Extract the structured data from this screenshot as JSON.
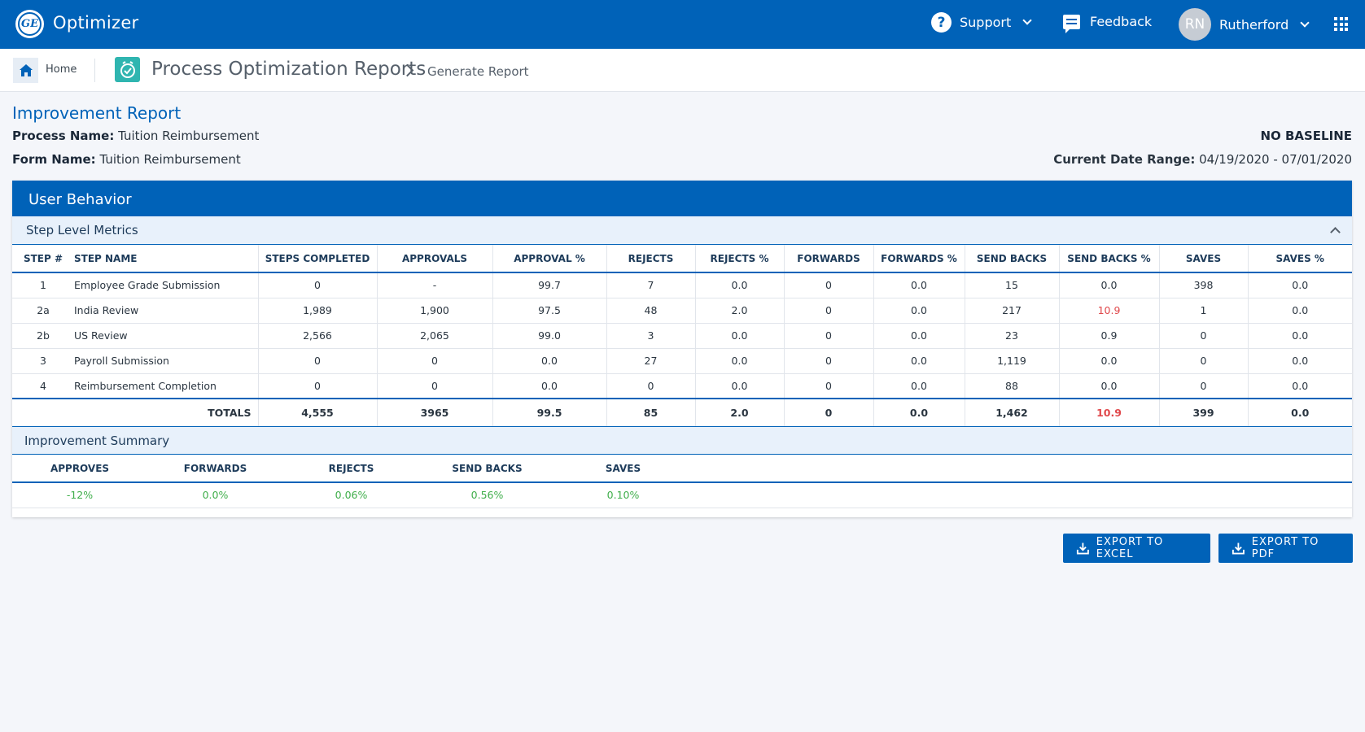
{
  "header": {
    "logo_text": "GE",
    "app_title": "Optimizer",
    "support_label": "Support",
    "feedback_label": "Feedback",
    "user_initials": "RN",
    "user_name": "Rutherford"
  },
  "breadcrumb": {
    "home_label": "Home",
    "app_name": "Process Optimization Reports",
    "current": "Generate Report"
  },
  "report": {
    "title": "Improvement Report",
    "process_name_label": "Process Name:",
    "process_name": "Tuition Reimbursement",
    "form_name_label": "Form Name:",
    "form_name": "Tuition Reimbursement",
    "baseline_status": "NO BASELINE",
    "date_range_label": "Current Date Range:",
    "date_range": "04/19/2020 - 07/01/2020"
  },
  "card": {
    "title": "User Behavior",
    "step_section_title": "Step Level Metrics",
    "summary_section_title": "Improvement Summary"
  },
  "metrics": {
    "columns": [
      "STEP #",
      "STEP NAME",
      "STEPS COMPLETED",
      "APPROVALS",
      "APPROVAL %",
      "REJECTS",
      "REJECTS %",
      "FORWARDS",
      "FORWARDS %",
      "SEND BACKS",
      "SEND BACKS %",
      "SAVES",
      "SAVES %"
    ],
    "rows": [
      [
        "1",
        "Employee Grade Submission",
        "0",
        "-",
        "99.7",
        "7",
        "0.0",
        "0",
        "0.0",
        "15",
        "0.0",
        "398",
        "0.0"
      ],
      [
        "2a",
        "India Review",
        "1,989",
        "1,900",
        "97.5",
        "48",
        "2.0",
        "0",
        "0.0",
        "217",
        "10.9",
        "1",
        "0.0"
      ],
      [
        "2b",
        "US Review",
        "2,566",
        "2,065",
        "99.0",
        "3",
        "0.0",
        "0",
        "0.0",
        "23",
        "0.9",
        "0",
        "0.0"
      ],
      [
        "3",
        "Payroll Submission",
        "0",
        "0",
        "0.0",
        "27",
        "0.0",
        "0",
        "0.0",
        "1,119",
        "0.0",
        "0",
        "0.0"
      ],
      [
        "4",
        "Reimbursement Completion",
        "0",
        "0",
        "0.0",
        "0",
        "0.0",
        "0",
        "0.0",
        "88",
        "0.0",
        "0",
        "0.0"
      ]
    ],
    "totals_label": "TOTALS",
    "totals": [
      "4,555",
      "3965",
      "99.5",
      "85",
      "2.0",
      "0",
      "0.0",
      "1,462",
      "10.9",
      "399",
      "0.0"
    ],
    "highlight_color": "#e0484b"
  },
  "summary": {
    "columns": [
      "APPROVES",
      "FORWARDS",
      "REJECTS",
      "SEND BACKS",
      "SAVES"
    ],
    "values": [
      "-12%",
      "0.0%",
      "0.06%",
      "0.56%",
      "0.10%"
    ],
    "value_color": "#3fae4a"
  },
  "actions": {
    "export_excel": "EXPORT TO EXCEL",
    "export_pdf": "EXPORT TO PDF"
  },
  "colors": {
    "brand": "#0062b8",
    "app_icon": "#2fb5b0"
  }
}
